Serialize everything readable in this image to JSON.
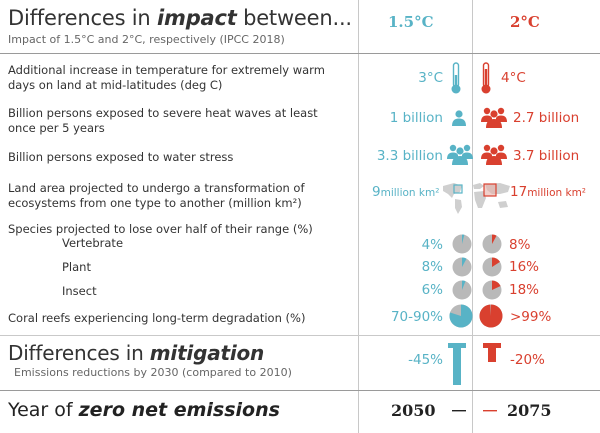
{
  "header": {
    "title_prefix": "Differences in ",
    "title_emph": "impact",
    "title_suffix": " between...",
    "subtitle": "Impact of 1.5°C and 2°C, respectively (IPCC 2018)",
    "col_a": "1.5°C",
    "col_b": "2°C"
  },
  "rows": {
    "temp": {
      "label": "Additional increase in temperature for extremely warm days on land at mid-latitudes (deg C)",
      "a": "3°C",
      "b": "4°C"
    },
    "heat": {
      "label": "Billion persons exposed to severe heat waves at least once per 5 years",
      "a": "1 billion",
      "b": "2.7 billion"
    },
    "water": {
      "label": "Billion persons exposed to water stress",
      "a": "3.3 billion",
      "b": "3.7 billion"
    },
    "land": {
      "label": "Land area projected to undergo a transformation of ecosystems from one type to another (million km²)",
      "a_num": "9",
      "a_unit": "million km²",
      "b_num": "17",
      "b_unit": "million km²"
    },
    "species": {
      "label": "Species projected to lose over half of their range (%)"
    },
    "vertebrate": {
      "label": "Vertebrate",
      "a": "4%",
      "b": "8%",
      "a_frac": 0.04,
      "b_frac": 0.08
    },
    "plant": {
      "label": "Plant",
      "a": "8%",
      "b": "16%",
      "a_frac": 0.08,
      "b_frac": 0.16
    },
    "insect": {
      "label": "Insect",
      "a": "6%",
      "b": "18%",
      "a_frac": 0.06,
      "b_frac": 0.18
    },
    "coral": {
      "label": "Coral reefs experiencing long-term degradation (%)",
      "a": "70-90%",
      "b": ">99%",
      "a_frac": 0.8,
      "b_frac": 0.99
    }
  },
  "mitigation": {
    "title_prefix": "Differences in ",
    "title_emph": "mitigation",
    "subtitle": "Emissions reductions by 2030 (compared to 2010)",
    "a": "-45%",
    "b": "-20%"
  },
  "zero": {
    "title_prefix": "Year of ",
    "title_emph": "zero net emissions",
    "a": "2050",
    "b": "2075"
  },
  "colors": {
    "blue": "#58b3c6",
    "red": "#d9402f",
    "grey": "#b9b9b9"
  }
}
